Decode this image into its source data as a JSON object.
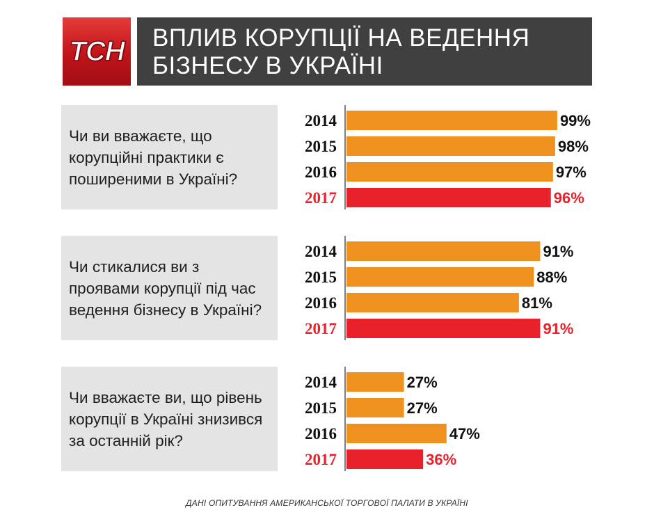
{
  "logo": {
    "text": "ТСН"
  },
  "title": {
    "line1": "ВПЛИВ КОРУПЦІЇ НА ВЕДЕННЯ",
    "line2": "БІЗНЕСУ В УКРАЇНІ"
  },
  "colors": {
    "bar": "#ee911f",
    "highlight": "#e8212b",
    "text": "#111111",
    "highlight_text": "#e8212b",
    "panel": "#e4e4e4",
    "title_bg": "#404040"
  },
  "chart_data": [
    {
      "type": "bar",
      "title": "Чи ви вважаєте, що корупційні практики є поширеними в Україні?",
      "categories": [
        "2014",
        "2015",
        "2016",
        "2017"
      ],
      "values": [
        99,
        98,
        97,
        96
      ],
      "labels": [
        "99%",
        "98%",
        "97%",
        "96%"
      ],
      "highlight": "2017"
    },
    {
      "type": "bar",
      "title": "Чи стикалися ви з проявами корупції під час ведення бізнесу в Україні?",
      "categories": [
        "2014",
        "2015",
        "2016",
        "2017"
      ],
      "values": [
        91,
        88,
        81,
        91
      ],
      "labels": [
        "91%",
        "88%",
        "81%",
        "91%"
      ],
      "highlight": "2017"
    },
    {
      "type": "bar",
      "title": "Чи вважаєте ви, що рівень корупції в Україні знизився за останній рік?",
      "categories": [
        "2014",
        "2015",
        "2016",
        "2017"
      ],
      "values": [
        27,
        27,
        47,
        36
      ],
      "labels": [
        "27%",
        "27%",
        "47%",
        "36%"
      ],
      "highlight": "2017"
    }
  ],
  "footer": "ДАНІ ОПИТУВАННЯ АМЕРИКАНСЬКОЇ ТОРГОВОЇ ПАЛАТИ В УКРАЇНІ"
}
